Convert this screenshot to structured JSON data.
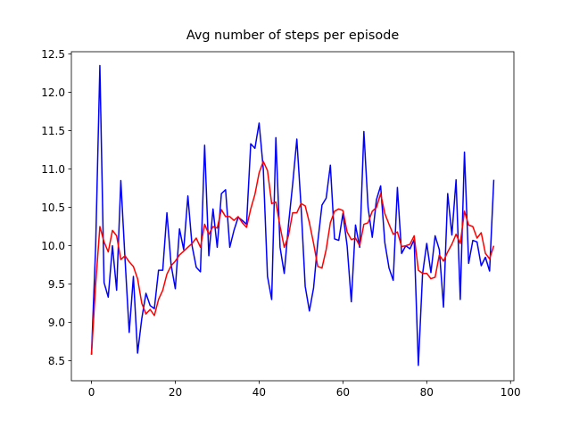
{
  "chart_data": {
    "type": "line",
    "title": "Avg number of steps per episode",
    "x": [
      0,
      1,
      2,
      3,
      4,
      5,
      6,
      7,
      8,
      9,
      10,
      11,
      12,
      13,
      14,
      15,
      16,
      17,
      18,
      19,
      20,
      21,
      22,
      23,
      24,
      25,
      26,
      27,
      28,
      29,
      30,
      31,
      32,
      33,
      34,
      35,
      36,
      37,
      38,
      39,
      40,
      41,
      42,
      43,
      44,
      45,
      46,
      47,
      48,
      49,
      50,
      51,
      52,
      53,
      54,
      55,
      56,
      57,
      58,
      59,
      60,
      61,
      62,
      63,
      64,
      65,
      66,
      67,
      68,
      69,
      70,
      71,
      72,
      73,
      74,
      75,
      76,
      77,
      78,
      79,
      80,
      81,
      82,
      83,
      84,
      85,
      86,
      87,
      88,
      89,
      90,
      91,
      92,
      93,
      94,
      95,
      96
    ],
    "series": [
      {
        "color": "#0000ff",
        "values": [
          8.58,
          10.0,
          12.35,
          9.52,
          9.33,
          10.0,
          9.42,
          10.85,
          9.83,
          8.87,
          9.6,
          8.6,
          9.05,
          9.38,
          9.22,
          9.18,
          9.68,
          9.68,
          10.43,
          9.75,
          9.44,
          10.22,
          9.95,
          10.65,
          10.0,
          9.72,
          9.66,
          11.31,
          9.87,
          10.48,
          9.98,
          10.68,
          10.73,
          9.98,
          10.2,
          10.37,
          10.33,
          10.28,
          11.33,
          11.27,
          11.6,
          11.0,
          9.6,
          9.3,
          11.41,
          9.98,
          9.64,
          10.27,
          10.8,
          11.39,
          10.52,
          9.47,
          9.15,
          9.45,
          10.05,
          10.53,
          10.62,
          11.05,
          10.09,
          10.07,
          10.42,
          10.0,
          9.27,
          10.27,
          9.98,
          11.49,
          10.5,
          10.11,
          10.6,
          10.78,
          10.04,
          9.71,
          9.55,
          10.76,
          9.9,
          10.0,
          9.96,
          10.08,
          8.44,
          9.63,
          10.03,
          9.65,
          10.13,
          9.95,
          9.2,
          10.68,
          10.14,
          10.86,
          9.3,
          11.22,
          9.77,
          10.07,
          10.05,
          9.74,
          9.85,
          9.67,
          10.86
        ]
      },
      {
        "color": "#ff0000",
        "values": [
          8.58,
          9.5,
          10.25,
          10.05,
          9.92,
          10.2,
          10.13,
          9.82,
          9.87,
          9.79,
          9.73,
          9.57,
          9.25,
          9.11,
          9.17,
          9.09,
          9.3,
          9.42,
          9.63,
          9.74,
          9.8,
          9.88,
          9.93,
          9.98,
          10.03,
          10.1,
          9.98,
          10.28,
          10.15,
          10.25,
          10.23,
          10.47,
          10.38,
          10.38,
          10.33,
          10.38,
          10.3,
          10.24,
          10.48,
          10.67,
          10.95,
          11.1,
          10.98,
          10.55,
          10.57,
          10.25,
          9.98,
          10.13,
          10.43,
          10.43,
          10.55,
          10.52,
          10.3,
          10.03,
          9.73,
          9.71,
          9.95,
          10.3,
          10.45,
          10.48,
          10.46,
          10.18,
          10.08,
          10.1,
          10.0,
          10.28,
          10.3,
          10.45,
          10.5,
          10.68,
          10.42,
          10.28,
          10.15,
          10.18,
          9.99,
          10.0,
          10.02,
          10.13,
          9.68,
          9.64,
          9.64,
          9.57,
          9.59,
          9.88,
          9.8,
          9.92,
          10.02,
          10.15,
          10.03,
          10.45,
          10.27,
          10.25,
          10.1,
          10.17,
          9.9,
          9.83,
          10.0
        ]
      }
    ],
    "xlim": [
      -4.8,
      100.8
    ],
    "ylim": [
      8.24,
      12.53
    ],
    "xticks": [
      0,
      20,
      40,
      60,
      80,
      100
    ],
    "yticks": [
      8.5,
      {
        "value": 9,
        "label": "9.0"
      },
      9.5,
      {
        "value": 10,
        "label": "10.0"
      },
      10.5,
      {
        "value": 11,
        "label": "11.0"
      },
      11.5,
      {
        "value": 12,
        "label": "12.0"
      },
      12.5
    ]
  }
}
